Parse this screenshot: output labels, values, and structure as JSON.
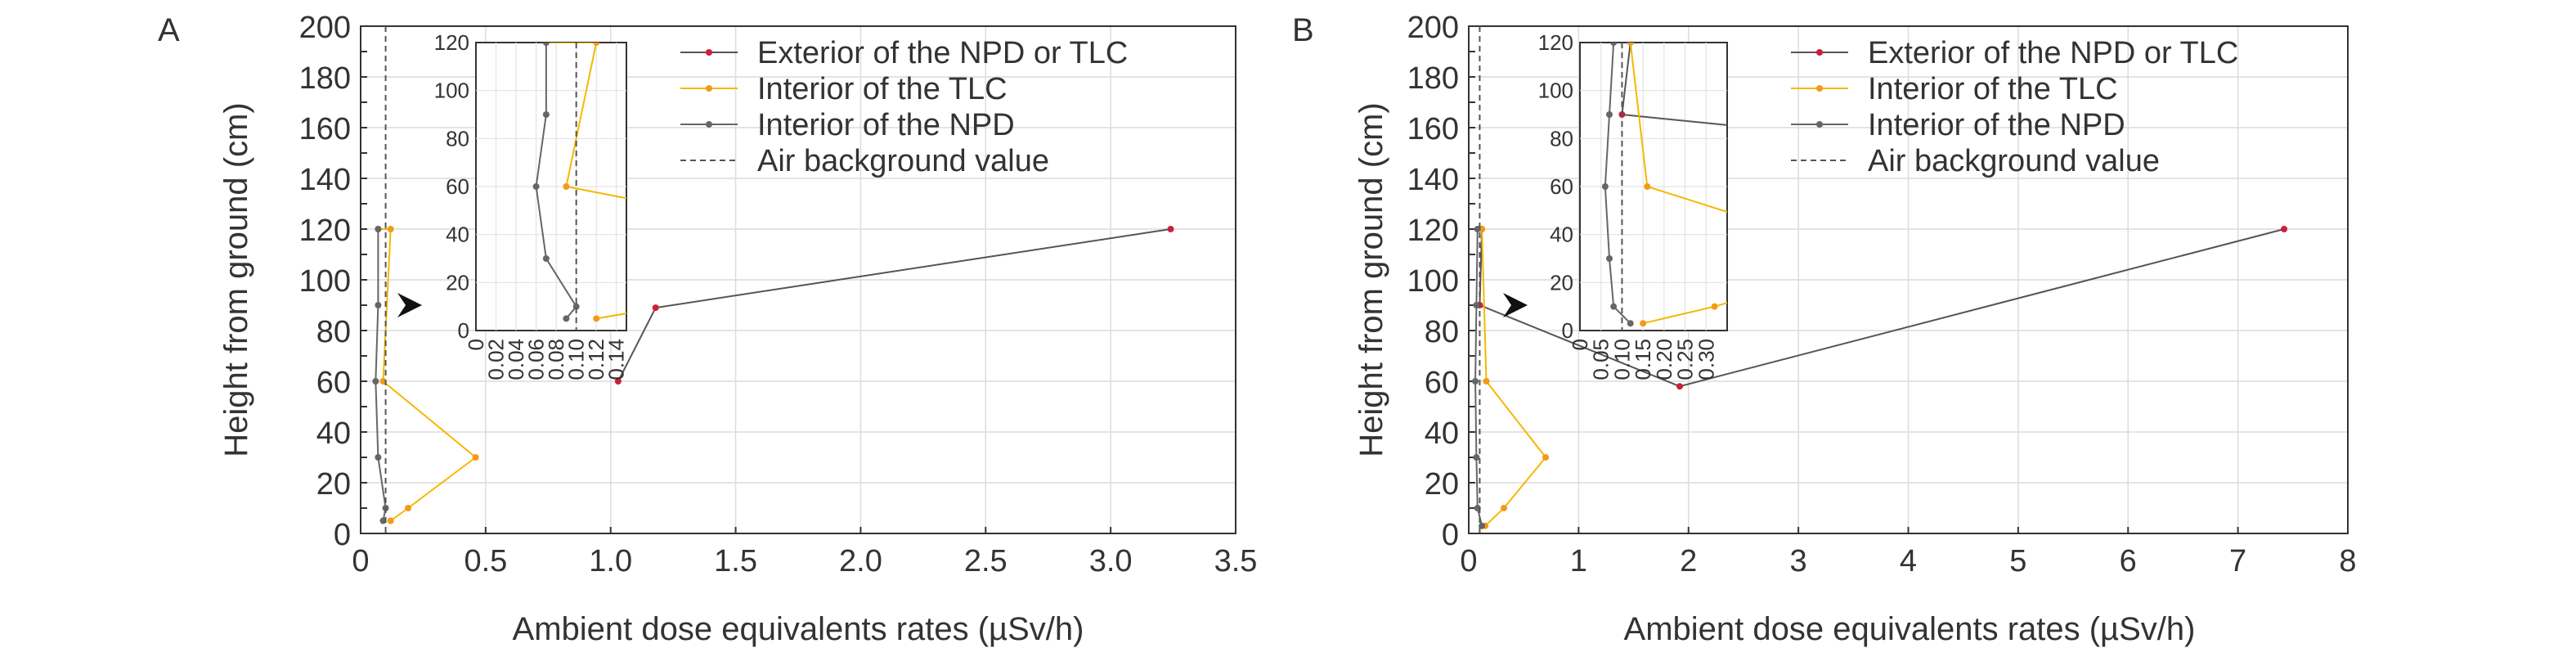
{
  "figure": {
    "panels": [
      {
        "label": "A"
      },
      {
        "label": "B"
      }
    ],
    "legend": {
      "items": [
        {
          "label": "Exterior of the NPD or TLC",
          "color": "#555555",
          "marker": "#cc1f3a"
        },
        {
          "label": "Interior of the TLC",
          "color": "#f5b800",
          "marker": "#f29a1a"
        },
        {
          "label": "Interior of the NPD",
          "color": "#666666",
          "marker": "#666666"
        },
        {
          "label": "Air background value",
          "color": "#555555",
          "dashed": true
        }
      ]
    },
    "arrow_icon": "arrowhead-right"
  },
  "chart_data": [
    {
      "panel": "A",
      "type": "line",
      "xlabel": "Ambient dose equivalents rates (µSv/h)",
      "ylabel": "Height from ground (cm)",
      "xlim": [
        0,
        3.5
      ],
      "ylim": [
        0,
        200
      ],
      "xticks": [
        "0",
        "0.5",
        "1.0",
        "1.5",
        "2.0",
        "2.5",
        "3.0",
        "3.5"
      ],
      "yticks": [
        "0",
        "10",
        "20",
        "30",
        "40",
        "50",
        "60",
        "70",
        "80",
        "90",
        "100",
        "110",
        "120",
        "130",
        "140",
        "150",
        "160",
        "170",
        "180",
        "190",
        "200"
      ],
      "grid": true,
      "series": [
        {
          "name": "Exterior of the NPD or TLC",
          "points": [
            [
              1.03,
              60
            ],
            [
              1.18,
              89
            ],
            [
              3.24,
              120
            ]
          ]
        },
        {
          "name": "Interior of the TLC",
          "points": [
            [
              0.12,
              5
            ],
            [
              0.19,
              10
            ],
            [
              0.46,
              30
            ],
            [
              0.09,
              60
            ],
            [
              0.12,
              120
            ],
            [
              0.07,
              120
            ]
          ]
        },
        {
          "name": "Interior of the NPD",
          "points": [
            [
              0.09,
              5
            ],
            [
              0.1,
              10
            ],
            [
              0.07,
              30
            ],
            [
              0.06,
              60
            ],
            [
              0.07,
              90
            ],
            [
              0.07,
              120
            ]
          ]
        },
        {
          "name": "Air background value",
          "x_value": 0.1
        }
      ],
      "inset": {
        "xlim": [
          0,
          0.15
        ],
        "ylim": [
          0,
          120
        ],
        "xticks": [
          "0",
          "0.02",
          "0.04",
          "0.06",
          "0.08",
          "0.10",
          "0.12",
          "0.14"
        ],
        "yticks": [
          "0",
          "20",
          "40",
          "60",
          "80",
          "100",
          "120"
        ]
      }
    },
    {
      "panel": "B",
      "type": "line",
      "xlabel": "Ambient dose equivalents rates  (µSv/h)",
      "ylabel": "Height from ground (cm)",
      "xlim": [
        0,
        8
      ],
      "ylim": [
        0,
        200
      ],
      "xticks": [
        "0",
        "1",
        "2",
        "3",
        "4",
        "5",
        "6",
        "7",
        "8"
      ],
      "yticks": [
        "0",
        "10",
        "20",
        "30",
        "40",
        "50",
        "60",
        "70",
        "80",
        "90",
        "100",
        "110",
        "120",
        "130",
        "140",
        "150",
        "160",
        "170",
        "180",
        "190",
        "200"
      ],
      "grid": true,
      "series": [
        {
          "name": "Exterior of the NPD or TLC",
          "points": [
            [
              0.12,
              120
            ],
            [
              0.1,
              90
            ],
            [
              1.92,
              58
            ],
            [
              7.42,
              120
            ]
          ]
        },
        {
          "name": "Interior of the TLC",
          "points": [
            [
              0.15,
              3
            ],
            [
              0.32,
              10
            ],
            [
              0.7,
              30
            ],
            [
              0.16,
              60
            ],
            [
              0.12,
              120
            ]
          ]
        },
        {
          "name": "Interior of the NPD",
          "points": [
            [
              0.12,
              3
            ],
            [
              0.08,
              10
            ],
            [
              0.07,
              30
            ],
            [
              0.06,
              60
            ],
            [
              0.07,
              90
            ],
            [
              0.08,
              120
            ]
          ]
        },
        {
          "name": "Air background value",
          "x_value": 0.1
        }
      ],
      "inset": {
        "xlim": [
          0,
          0.35
        ],
        "ylim": [
          0,
          120
        ],
        "xticks": [
          "0",
          "0.05",
          "0.10",
          "0.15",
          "0.20",
          "0.25",
          "0.30"
        ],
        "yticks": [
          "0",
          "20",
          "40",
          "60",
          "80",
          "100",
          "120"
        ]
      }
    }
  ]
}
